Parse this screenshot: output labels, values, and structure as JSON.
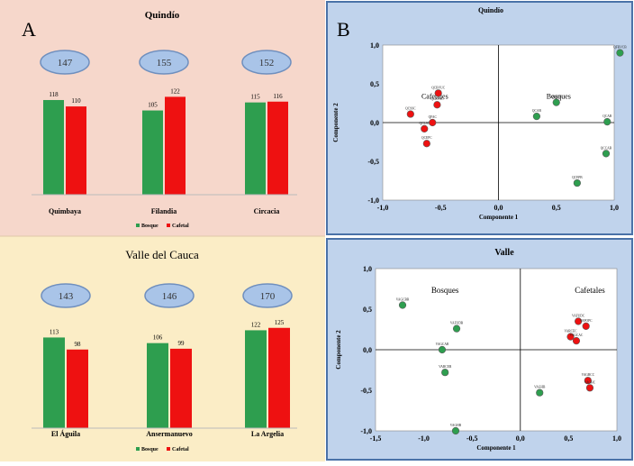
{
  "panel_labels": {
    "a": "A",
    "b": "B"
  },
  "colors": {
    "bosque": "#2e9e4f",
    "cafetal": "#ee1111",
    "oval_fill": "#a9c4e8",
    "oval_stroke": "#6f8fbe",
    "panel_a_top_bg": "#f6d7cb",
    "panel_a_bottom_bg": "#fbedc6",
    "panel_b_bg": "#c0d3ec"
  },
  "chart_data": [
    {
      "type": "bar",
      "title": "Quindío",
      "categories": [
        "Quimbaya",
        "Filandia",
        "Circacia"
      ],
      "totals": [
        147,
        155,
        152
      ],
      "series": [
        {
          "name": "Bosque",
          "values": [
            118,
            105,
            115
          ]
        },
        {
          "name": "Cafetal",
          "values": [
            110,
            122,
            116
          ]
        }
      ],
      "legend": "bottom"
    },
    {
      "type": "bar",
      "title": "Valle del Cauca",
      "categories": [
        "El Águila",
        "Ansermanuevo",
        "La Argelia"
      ],
      "totals": [
        143,
        146,
        170
      ],
      "series": [
        {
          "name": "Bosque",
          "values": [
            113,
            106,
            122
          ]
        },
        {
          "name": "Cafetal",
          "values": [
            98,
            99,
            125
          ]
        }
      ],
      "legend": "bottom"
    },
    {
      "type": "scatter",
      "title": "Quindío",
      "xlabel": "Componente 1",
      "ylabel": "Componente 2",
      "xlim": [
        -1.0,
        1.0
      ],
      "ylim": [
        -1.0,
        1.0
      ],
      "xticks": [
        "-1,0",
        "-0,5",
        "0,0",
        "0,5",
        "1,0"
      ],
      "yticks": [
        "1,0",
        "0,5",
        "0,0",
        "-0,5",
        "-1,0"
      ],
      "group_labels": [
        {
          "text": "Cafetales",
          "x": -0.55,
          "y": 0.31
        },
        {
          "text": "Bosques",
          "x": 0.52,
          "y": 0.31
        }
      ],
      "series": [
        {
          "name": "Cafetales",
          "points": [
            {
              "label": "QCBVUC",
              "x": -0.52,
              "y": 0.38
            },
            {
              "label": "QCBVSC",
              "x": -0.53,
              "y": 0.23
            },
            {
              "label": "QCSSC",
              "x": -0.76,
              "y": 0.11
            },
            {
              "label": "QFAC",
              "x": -0.57,
              "y": 0.0
            },
            {
              "label": "QCLSC",
              "x": -0.64,
              "y": -0.08
            },
            {
              "label": "QCEPC",
              "x": -0.62,
              "y": -0.27
            }
          ]
        },
        {
          "name": "Bosques",
          "points": [
            {
              "label": "QFBVCB",
              "x": 1.05,
              "y": 0.9
            },
            {
              "label": "QQPFB",
              "x": 0.5,
              "y": 0.26
            },
            {
              "label": "QCAB",
              "x": 0.33,
              "y": 0.08
            },
            {
              "label": "QCAB",
              "x": 0.94,
              "y": 0.01
            },
            {
              "label": "QCCAB",
              "x": 0.93,
              "y": -0.4
            },
            {
              "label": "QCEPB",
              "x": 0.68,
              "y": -0.78
            }
          ]
        }
      ]
    },
    {
      "type": "scatter",
      "title": "Valle",
      "xlabel": "Componente 1",
      "ylabel": "Componente 2",
      "xlim": [
        -1.5,
        1.0
      ],
      "ylim": [
        -1.0,
        1.0
      ],
      "xticks": [
        "-1,5",
        "-1,0",
        "-0,5",
        "0,0",
        "0,5",
        "1,0"
      ],
      "yticks": [
        "1,0",
        "0,5",
        "0,0",
        "-0,5",
        "-1,0"
      ],
      "group_labels": [
        {
          "text": "Bosques",
          "x": -0.78,
          "y": 0.7
        },
        {
          "text": "Cafetales",
          "x": 0.72,
          "y": 0.7
        }
      ],
      "series": [
        {
          "name": "Bosques",
          "points": [
            {
              "label": "VAGCBR",
              "x": -1.22,
              "y": 0.55
            },
            {
              "label": "VAFUDB",
              "x": -0.66,
              "y": 0.26
            },
            {
              "label": "VAGCAB",
              "x": -0.81,
              "y": 0.0
            },
            {
              "label": "VARCEB",
              "x": -0.78,
              "y": -0.28
            },
            {
              "label": "VAGHB",
              "x": -0.67,
              "y": -1.0
            },
            {
              "label": "VAGHB",
              "x": 0.2,
              "y": -0.53
            }
          ]
        },
        {
          "name": "Cafetales",
          "points": [
            {
              "label": "VAFUDC",
              "x": 0.6,
              "y": 0.35
            },
            {
              "label": "VAPOPC",
              "x": 0.68,
              "y": 0.29
            },
            {
              "label": "VARCEC",
              "x": 0.52,
              "y": 0.16
            },
            {
              "label": "VAGCAC",
              "x": 0.58,
              "y": 0.11
            },
            {
              "label": "VAGBCC",
              "x": 0.7,
              "y": -0.38
            },
            {
              "label": "VAGHC",
              "x": 0.72,
              "y": -0.47
            }
          ]
        }
      ]
    }
  ]
}
